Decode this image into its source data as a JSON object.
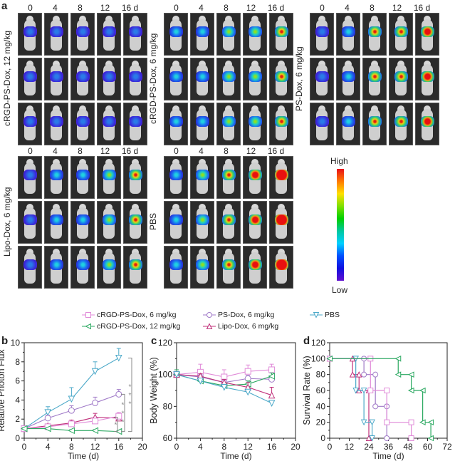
{
  "panel_a": {
    "letter": "a",
    "days": [
      "0",
      "4",
      "8",
      "12",
      "16 d"
    ],
    "groups": [
      {
        "label": "cRGD-PS-Dox, 12 mg/kg",
        "signal": [
          0.15,
          0.12,
          0.12,
          0.12,
          0.12
        ]
      },
      {
        "label": "cRGD-PS-Dox, 6 mg/kg",
        "signal": [
          0.2,
          0.3,
          0.45,
          0.45,
          0.6
        ]
      },
      {
        "label": "PS-Dox, 6 mg/kg",
        "signal": [
          0.15,
          0.3,
          0.55,
          0.65,
          0.75
        ]
      },
      {
        "label": "Lipo-Dox, 6 mg/kg",
        "signal": [
          0.12,
          0.2,
          0.3,
          0.45,
          0.55
        ]
      },
      {
        "label": "PBS",
        "signal": [
          0.2,
          0.45,
          0.55,
          0.8,
          0.95
        ]
      }
    ],
    "colorbar": {
      "high": "High",
      "low": "Low"
    }
  },
  "legend": [
    {
      "label": "cRGD-PS-Dox, 6 mg/kg",
      "marker": "square",
      "color": "#e08ad8"
    },
    {
      "label": "PS-Dox, 6 mg/kg",
      "marker": "circle",
      "color": "#a07ac8"
    },
    {
      "label": "PBS",
      "marker": "triangle-down",
      "color": "#4aa8c8"
    },
    {
      "label": "cRGD-PS-Dox, 12 mg/kg",
      "marker": "triangle-left",
      "color": "#2aa860"
    },
    {
      "label": "Lipo-Dox, 6 mg/kg",
      "marker": "triangle-up",
      "color": "#c0307a"
    }
  ],
  "chart_data": [
    {
      "panel": "b",
      "type": "line",
      "xlabel": "Time (d)",
      "ylabel": "Relative Photon Flux",
      "xlim": [
        0,
        20
      ],
      "ylim": [
        0,
        10
      ],
      "xticks": [
        "0",
        "4",
        "8",
        "12",
        "16",
        "20"
      ],
      "yticks": [
        "0",
        "2",
        "4",
        "6",
        "8",
        "10"
      ],
      "x": [
        0,
        4,
        8,
        12,
        16
      ],
      "series": [
        {
          "name": "PBS",
          "values": [
            1.0,
            2.7,
            4.1,
            7.0,
            8.4
          ],
          "err": [
            0.1,
            0.6,
            1.2,
            1.0,
            1.0
          ]
        },
        {
          "name": "PS-Dox, 6 mg/kg",
          "values": [
            1.0,
            2.1,
            2.9,
            3.7,
            4.6
          ],
          "err": [
            0.1,
            0.3,
            0.5,
            0.6,
            0.5
          ]
        },
        {
          "name": "Lipo-Dox, 6 mg/kg",
          "values": [
            1.0,
            1.3,
            1.6,
            2.2,
            2.1
          ],
          "err": [
            0.1,
            0.2,
            0.3,
            0.4,
            0.4
          ]
        },
        {
          "name": "cRGD-PS-Dox, 6 mg/kg",
          "values": [
            1.0,
            1.2,
            1.5,
            1.8,
            2.3
          ],
          "err": [
            0.1,
            0.2,
            0.3,
            0.3,
            0.4
          ]
        },
        {
          "name": "cRGD-PS-Dox, 12 mg/kg",
          "values": [
            1.0,
            1.0,
            0.8,
            0.8,
            0.7
          ],
          "err": [
            0.1,
            0.1,
            0.1,
            0.1,
            0.1
          ]
        }
      ],
      "annotations": [
        "***",
        "***",
        "*"
      ]
    },
    {
      "panel": "c",
      "type": "line",
      "xlabel": "Time (d)",
      "ylabel": "Body Weight (%)",
      "xlim": [
        0,
        20
      ],
      "ylim": [
        60,
        120
      ],
      "xticks": [
        "0",
        "4",
        "8",
        "12",
        "16",
        "20"
      ],
      "yticks": [
        "60",
        "80",
        "100",
        "120"
      ],
      "x": [
        0,
        4,
        8,
        12,
        16
      ],
      "series": [
        {
          "name": "cRGD-PS-Dox, 6 mg/kg",
          "values": [
            100,
            101.5,
            98.5,
            102,
            103
          ],
          "err": [
            2,
            5,
            4.5,
            4,
            3.5
          ]
        },
        {
          "name": "PS-Dox, 6 mg/kg",
          "values": [
            100,
            98.5,
            95,
            97.5,
            97
          ],
          "err": [
            1.5,
            2,
            2,
            2,
            2
          ]
        },
        {
          "name": "cRGD-PS-Dox, 12 mg/kg",
          "values": [
            100,
            96,
            93,
            94,
            99
          ],
          "err": [
            3,
            2,
            2,
            2,
            2
          ]
        },
        {
          "name": "Lipo-Dox, 6 mg/kg",
          "values": [
            100,
            99,
            95,
            92,
            87
          ],
          "err": [
            1.5,
            1.5,
            2,
            3,
            5
          ]
        },
        {
          "name": "PBS",
          "values": [
            100,
            96,
            92,
            89,
            82
          ],
          "err": [
            1,
            1,
            1,
            1,
            1
          ]
        }
      ]
    },
    {
      "panel": "d",
      "type": "line",
      "xlabel": "Time (d)",
      "ylabel": "Survival Rate (%)",
      "xlim": [
        0,
        72
      ],
      "ylim": [
        0,
        120
      ],
      "xticks": [
        "0",
        "12",
        "24",
        "36",
        "48",
        "60",
        "72"
      ],
      "yticks": [
        "0",
        "20",
        "40",
        "60",
        "80",
        "100",
        "120"
      ],
      "series": [
        {
          "name": "Lipo-Dox, 6 mg/kg",
          "steps": [
            [
              0,
              100
            ],
            [
              14,
              100
            ],
            [
              14,
              80
            ],
            [
              18,
              80
            ],
            [
              18,
              60
            ],
            [
              24,
              60
            ],
            [
              24,
              0
            ]
          ]
        },
        {
          "name": "PBS",
          "steps": [
            [
              0,
              100
            ],
            [
              16,
              100
            ],
            [
              16,
              60
            ],
            [
              21,
              60
            ],
            [
              21,
              20
            ],
            [
              26,
              20
            ],
            [
              26,
              0
            ]
          ]
        },
        {
          "name": "PS-Dox, 6 mg/kg",
          "steps": [
            [
              0,
              100
            ],
            [
              21,
              100
            ],
            [
              21,
              80
            ],
            [
              28,
              80
            ],
            [
              28,
              40
            ],
            [
              35,
              40
            ],
            [
              35,
              0
            ]
          ]
        },
        {
          "name": "cRGD-PS-Dox, 6 mg/kg",
          "steps": [
            [
              0,
              100
            ],
            [
              25,
              100
            ],
            [
              25,
              60
            ],
            [
              35,
              60
            ],
            [
              35,
              20
            ],
            [
              50,
              20
            ],
            [
              50,
              0
            ]
          ]
        },
        {
          "name": "cRGD-PS-Dox, 12 mg/kg",
          "steps": [
            [
              0,
              100
            ],
            [
              42,
              100
            ],
            [
              42,
              80
            ],
            [
              50,
              80
            ],
            [
              50,
              60
            ],
            [
              57,
              60
            ],
            [
              57,
              20
            ],
            [
              62,
              20
            ],
            [
              62,
              0
            ]
          ]
        }
      ]
    }
  ]
}
